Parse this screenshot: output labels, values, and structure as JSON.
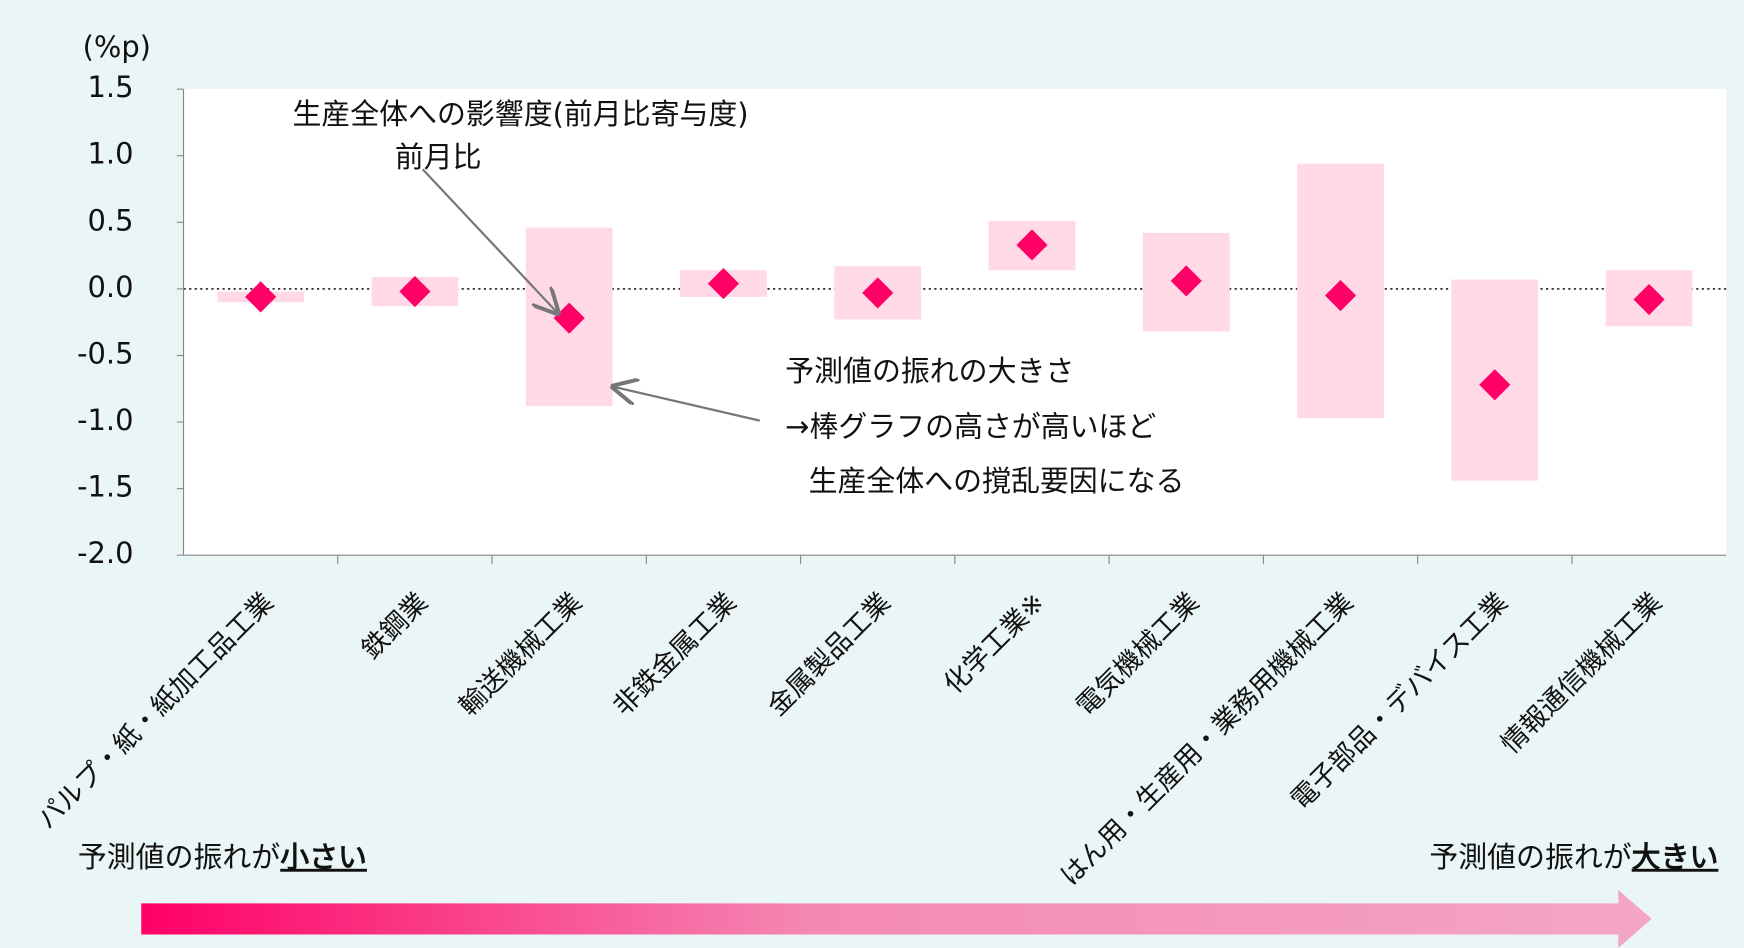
{
  "chart_data": {
    "type": "range_marker",
    "y_label": "(%p)",
    "categories": [
      "パルプ・紙・紙加工品工業",
      "鉄鋼業",
      "輸送機械工業",
      "非鉄金属工業",
      "金属製品工業",
      "化学工業※",
      "電気機械工業",
      "はん用・生産用・業務用機械工業",
      "電子部品・デバイス工業",
      "情報通信機械工業"
    ],
    "values": [
      -0.06,
      -0.02,
      -0.22,
      0.04,
      -0.03,
      0.33,
      0.06,
      -0.05,
      -0.72,
      -0.08
    ],
    "low": [
      -0.1,
      -0.13,
      -0.88,
      -0.06,
      -0.23,
      0.14,
      -0.32,
      -0.97,
      -1.44,
      -0.28
    ],
    "high": [
      -0.02,
      0.09,
      0.46,
      0.14,
      0.17,
      0.51,
      0.42,
      0.94,
      0.07,
      0.14
    ],
    "marker_color": "#ff0066",
    "bar_color": "#ffd9e6",
    "ylim": [
      -2.0,
      1.5
    ],
    "yticks": [
      {
        "value": -2,
        "label": "-2.0"
      },
      -1.5,
      {
        "value": -1,
        "label": "-1.0"
      },
      -0.5,
      {
        "value": 0,
        "label": "0.0"
      },
      0.5,
      {
        "value": 1,
        "label": "1.0"
      },
      1.5
    ],
    "annotations": [
      "生産全体への影響度(前月比寄与度)",
      "前月比",
      "予測値の振れの大きさ",
      "→棒グラフの高さが高いほど",
      "生産全体への撹乱要因になる"
    ],
    "scale_left": {
      "text": "予測値の振れが",
      "strong": "小さい"
    },
    "scale_right": {
      "text": "予測値の振れが",
      "strong": "大きい"
    }
  }
}
